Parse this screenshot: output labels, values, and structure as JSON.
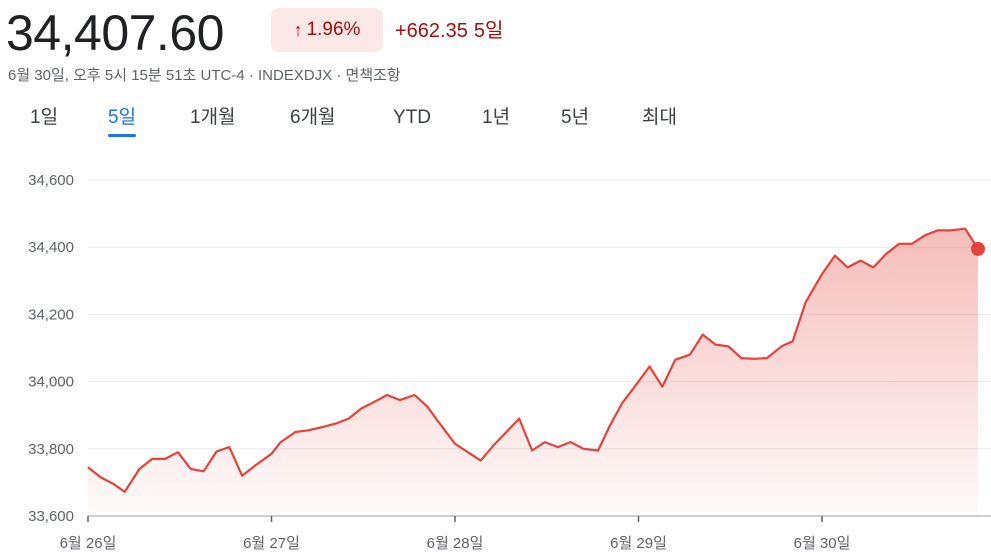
{
  "quote": {
    "price": "34,407.60",
    "change_percent": "1.96%",
    "arrow_icon": "arrow-up-icon",
    "change_points": "+662.35",
    "change_period": "5일",
    "meta": "6월 30일, 오후 5시 15분 51초 UTC-4 · INDEXDJX · 면책조항",
    "up_color": "#a50e0e"
  },
  "tabs": [
    {
      "label": "1일",
      "active": false
    },
    {
      "label": "5일",
      "active": true
    },
    {
      "label": "1개월",
      "active": false
    },
    {
      "label": "6개월",
      "active": false
    },
    {
      "label": "YTD",
      "active": false
    },
    {
      "label": "1년",
      "active": false
    },
    {
      "label": "5년",
      "active": false
    },
    {
      "label": "최대",
      "active": false
    }
  ],
  "chart_data": {
    "type": "area",
    "line_color": "#e2433a",
    "grid": true,
    "ylim": [
      33600,
      34600
    ],
    "yticks": [
      33600,
      33800,
      34000,
      34200,
      34400,
      34600
    ],
    "ytick_labels": [
      "33,600",
      "33,800",
      "34,000",
      "34,200",
      "34,400",
      "34,600"
    ],
    "xticks": [
      0,
      1,
      2,
      3,
      4
    ],
    "xtick_labels": [
      "6월 26일",
      "6월 27일",
      "6월 28일",
      "6월 29일",
      "6월 30일"
    ],
    "xlim": [
      0,
      4.85
    ],
    "x": [
      0.0,
      0.07,
      0.14,
      0.2,
      0.28,
      0.35,
      0.42,
      0.49,
      0.56,
      0.63,
      0.7,
      0.77,
      0.84,
      0.91,
      1.0,
      1.05,
      1.13,
      1.2,
      1.28,
      1.35,
      1.42,
      1.49,
      1.56,
      1.63,
      1.7,
      1.78,
      1.85,
      1.91,
      2.0,
      2.07,
      2.14,
      2.21,
      2.28,
      2.35,
      2.42,
      2.49,
      2.56,
      2.63,
      2.7,
      2.78,
      2.84,
      2.91,
      3.0,
      3.06,
      3.13,
      3.2,
      3.28,
      3.35,
      3.42,
      3.49,
      3.56,
      3.63,
      3.7,
      3.78,
      3.84,
      3.91,
      4.0,
      4.07,
      4.14,
      4.21,
      4.28,
      4.35,
      4.42,
      4.49,
      4.56,
      4.63,
      4.7,
      4.78,
      4.85
    ],
    "values": [
      33745,
      33715,
      33695,
      33672,
      33740,
      33770,
      33770,
      33790,
      33740,
      33733,
      33792,
      33805,
      33720,
      33750,
      33785,
      33820,
      33850,
      33855,
      33865,
      33875,
      33890,
      33920,
      33940,
      33960,
      33945,
      33960,
      33925,
      33880,
      33815,
      33790,
      33765,
      33810,
      33850,
      33890,
      33795,
      33820,
      33805,
      33820,
      33800,
      33795,
      33865,
      33935,
      34000,
      34045,
      33985,
      34065,
      34080,
      34140,
      34110,
      34105,
      34070,
      34068,
      34070,
      34105,
      34120,
      34235,
      34320,
      34375,
      34340,
      34360,
      34340,
      34380,
      34410,
      34410,
      34435,
      34450,
      34450,
      34455,
      34395
    ]
  }
}
